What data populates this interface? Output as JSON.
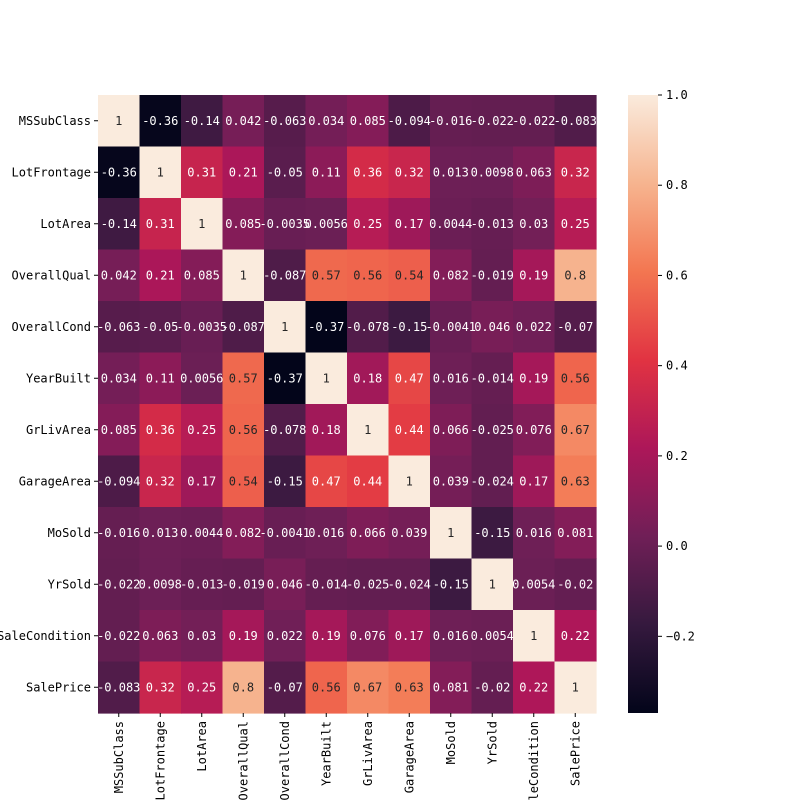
{
  "chart_data": {
    "type": "heatmap",
    "rows": [
      "MSSubClass",
      "LotFrontage",
      "LotArea",
      "OverallQual",
      "OverallCond",
      "YearBuilt",
      "GrLivArea",
      "GarageArea",
      "MoSold",
      "YrSold",
      "SaleCondition",
      "SalePrice"
    ],
    "columns": [
      "MSSubClass",
      "LotFrontage",
      "LotArea",
      "OverallQual",
      "OverallCond",
      "YearBuilt",
      "GrLivArea",
      "GarageArea",
      "MoSold",
      "YrSold",
      "leCondition",
      "SalePrice"
    ],
    "values": [
      [
        1,
        -0.36,
        -0.14,
        0.042,
        -0.063,
        0.034,
        0.085,
        -0.094,
        -0.016,
        -0.022,
        -0.022,
        -0.083
      ],
      [
        -0.36,
        1,
        0.31,
        0.21,
        -0.05,
        0.11,
        0.36,
        0.32,
        0.013,
        0.0098,
        0.063,
        0.32
      ],
      [
        -0.14,
        0.31,
        1,
        0.085,
        -0.0035,
        0.0056,
        0.25,
        0.17,
        0.0044,
        -0.013,
        0.03,
        0.25
      ],
      [
        0.042,
        0.21,
        0.085,
        1,
        -0.087,
        0.57,
        0.56,
        0.54,
        0.082,
        -0.019,
        0.19,
        0.8
      ],
      [
        -0.063,
        -0.05,
        -0.0035,
        -0.087,
        1,
        -0.37,
        -0.078,
        -0.15,
        -0.0041,
        0.046,
        0.022,
        -0.07
      ],
      [
        0.034,
        0.11,
        0.0056,
        0.57,
        -0.37,
        1,
        0.18,
        0.47,
        0.016,
        -0.014,
        0.19,
        0.56
      ],
      [
        0.085,
        0.36,
        0.25,
        0.56,
        -0.078,
        0.18,
        1,
        0.44,
        0.066,
        -0.025,
        0.076,
        0.67
      ],
      [
        -0.094,
        0.32,
        0.17,
        0.54,
        -0.15,
        0.47,
        0.44,
        1,
        0.039,
        -0.024,
        0.17,
        0.63
      ],
      [
        -0.016,
        0.013,
        0.0044,
        0.082,
        -0.0041,
        0.016,
        0.066,
        0.039,
        1,
        -0.15,
        0.016,
        0.081
      ],
      [
        -0.022,
        0.0098,
        -0.013,
        -0.019,
        0.046,
        -0.014,
        -0.025,
        -0.024,
        -0.15,
        1,
        0.0054,
        -0.02
      ],
      [
        -0.022,
        0.063,
        0.03,
        0.19,
        0.022,
        0.19,
        0.076,
        0.17,
        0.016,
        0.0054,
        1,
        0.22
      ],
      [
        -0.083,
        0.32,
        0.25,
        0.8,
        -0.07,
        0.56,
        0.67,
        0.63,
        0.081,
        -0.02,
        0.22,
        1
      ]
    ],
    "cell_labels": [
      [
        "1",
        "-0.36",
        "-0.14",
        "0.042",
        "-0.063",
        "0.034",
        "0.085",
        "-0.094",
        "-0.016",
        "-0.022",
        "-0.022",
        "-0.083"
      ],
      [
        "-0.36",
        "1",
        "0.31",
        "0.21",
        "-0.05",
        "0.11",
        "0.36",
        "0.32",
        "0.013",
        "0.0098",
        "0.063",
        "0.32"
      ],
      [
        "-0.14",
        "0.31",
        "1",
        "0.085",
        "-0.0035",
        "0.0056",
        "0.25",
        "0.17",
        "0.0044",
        "-0.013",
        "0.03",
        "0.25"
      ],
      [
        "0.042",
        "0.21",
        "0.085",
        "1",
        "-0.087",
        "0.57",
        "0.56",
        "0.54",
        "0.082",
        "-0.019",
        "0.19",
        "0.8"
      ],
      [
        "-0.063",
        "-0.05",
        "-0.0035",
        "-0.087",
        "1",
        "-0.37",
        "-0.078",
        "-0.15",
        "-0.0041",
        "0.046",
        "0.022",
        "-0.07"
      ],
      [
        "0.034",
        "0.11",
        "0.0056",
        "0.57",
        "-0.37",
        "1",
        "0.18",
        "0.47",
        "0.016",
        "-0.014",
        "0.19",
        "0.56"
      ],
      [
        "0.085",
        "0.36",
        "0.25",
        "0.56",
        "-0.078",
        "0.18",
        "1",
        "0.44",
        "0.066",
        "-0.025",
        "0.076",
        "0.67"
      ],
      [
        "-0.094",
        "0.32",
        "0.17",
        "0.54",
        "-0.15",
        "0.47",
        "0.44",
        "1",
        "0.039",
        "-0.024",
        "0.17",
        "0.63"
      ],
      [
        "-0.016",
        "0.013",
        "0.0044",
        "0.082",
        "-0.0041",
        "0.016",
        "0.066",
        "0.039",
        "1",
        "-0.15",
        "0.016",
        "0.081"
      ],
      [
        "-0.022",
        "0.0098",
        "-0.013",
        "-0.019",
        "0.046",
        "-0.014",
        "-0.025",
        "-0.024",
        "-0.15",
        "1",
        "0.0054",
        "-0.02"
      ],
      [
        "-0.022",
        "0.063",
        "0.03",
        "0.19",
        "0.022",
        "0.19",
        "0.076",
        "0.17",
        "0.016",
        "0.0054",
        "1",
        "0.22"
      ],
      [
        "-0.083",
        "0.32",
        "0.25",
        "0.8",
        "-0.07",
        "0.56",
        "0.67",
        "0.63",
        "0.081",
        "-0.02",
        "0.22",
        "1"
      ]
    ],
    "colorbar": {
      "min": -0.37,
      "max": 1.0,
      "ticks": [
        1.0,
        0.8,
        0.6,
        0.4,
        0.2,
        0.0,
        -0.2
      ],
      "tick_labels": [
        "1.0",
        "0.8",
        "0.6",
        "0.4",
        "0.2",
        "0.0",
        "−0.2"
      ],
      "colormap": "rocket",
      "colors": [
        "#03051a",
        "#35193e",
        "#701f57",
        "#ad1759",
        "#e13342",
        "#f37651",
        "#f6b48f",
        "#faebdd"
      ]
    },
    "title": "",
    "xlabel": "",
    "ylabel": "",
    "grid": false,
    "legend": "colorbar-right"
  }
}
